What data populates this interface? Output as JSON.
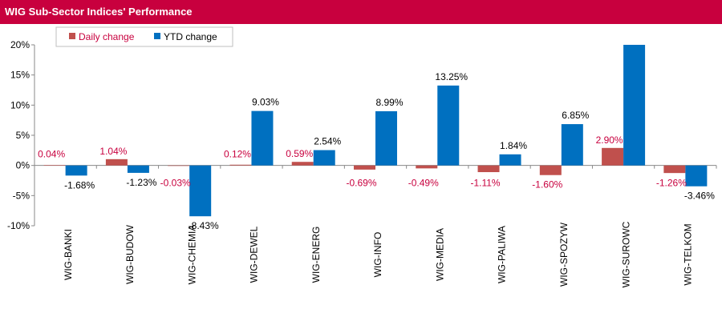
{
  "title": "WIG Sub-Sector Indices' Performance",
  "colors": {
    "daily": "#c0504d",
    "ytd": "#0070c0",
    "daily_label": "#c8003e",
    "ytd_label": "#000000",
    "header_bg": "#c8003e"
  },
  "chart_data": {
    "type": "bar",
    "title": "WIG Sub-Sector Indices' Performance",
    "xlabel": "",
    "ylabel": "",
    "ylim": [
      -10,
      20
    ],
    "yticks": [
      -10,
      -5,
      0,
      5,
      10,
      15,
      20
    ],
    "ytick_labels": [
      "-10%",
      "-5%",
      "0%",
      "5%",
      "10%",
      "15%",
      "20%"
    ],
    "categories": [
      "WIG-BANKI",
      "WIG-BUDOW",
      "WIG-CHEMIA",
      "WIG-DEWEL",
      "WIG-ENERG",
      "WIG-INFO",
      "WIG-MEDIA",
      "WIG-PALIWA",
      "WIG-SPOZYW",
      "WIG-SUROWC",
      "WIG-TELKOM"
    ],
    "legend_position": "top-left",
    "series": [
      {
        "name": "Daily change",
        "values": [
          0.04,
          1.04,
          -0.03,
          0.12,
          0.59,
          -0.69,
          -0.49,
          -1.11,
          -1.6,
          2.9,
          -1.26
        ],
        "labels": [
          "0.04%",
          "1.04%",
          "-0.03%",
          "0.12%",
          "0.59%",
          "-0.69%",
          "-0.49%",
          "-1.11%",
          "-1.60%",
          "2.90%",
          "-1.26%"
        ]
      },
      {
        "name": "YTD change",
        "values": [
          -1.68,
          -1.23,
          -8.43,
          9.03,
          2.54,
          8.99,
          13.25,
          1.84,
          6.85,
          20.0,
          -3.46
        ],
        "labels": [
          "-1.68%",
          "-1.23%",
          "-8.43%",
          "9.03%",
          "2.54%",
          "8.99%",
          "13.25%",
          "1.84%",
          "6.85%",
          "",
          "-3.46%"
        ]
      }
    ]
  }
}
